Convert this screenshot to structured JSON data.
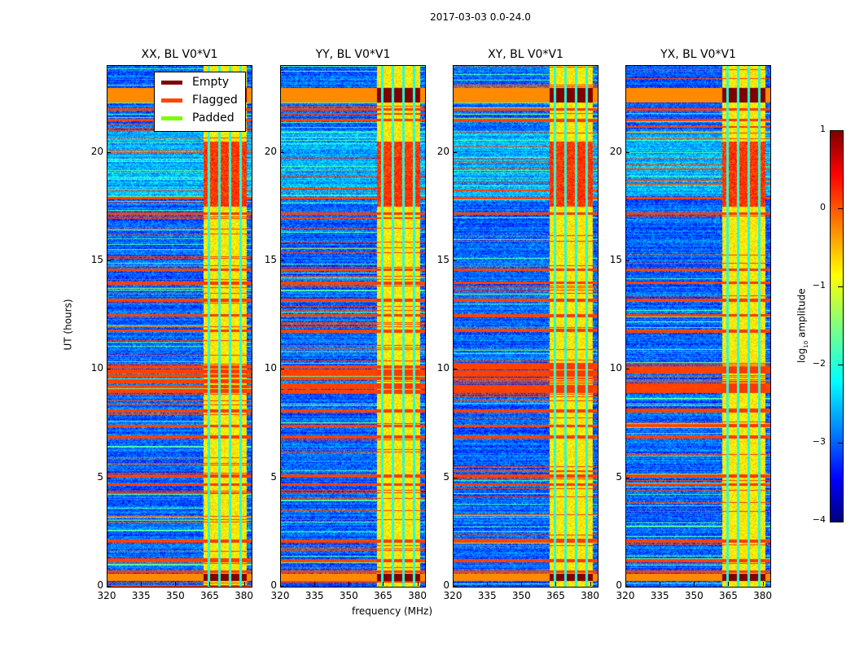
{
  "chart_data": {
    "type": "heatmap",
    "title": "2017-03-03 0.0-24.0",
    "xlabel": "frequency (MHz)",
    "ylabel": "UT (hours)",
    "xlim": [
      320,
      383
    ],
    "ylim": [
      0,
      24
    ],
    "x_ticks": [
      "320",
      "335",
      "350",
      "365",
      "380"
    ],
    "x_tick_values": [
      320,
      335,
      350,
      365,
      380
    ],
    "y_ticks": [
      "0",
      "5",
      "10",
      "15",
      "20"
    ],
    "y_tick_values": [
      0,
      5,
      10,
      15,
      20
    ],
    "panels": [
      {
        "title": "XX, BL V0*V1",
        "seed": 11
      },
      {
        "title": "YY, BL V0*V1",
        "seed": 23
      },
      {
        "title": "XY, BL V0*V1",
        "seed": 37
      },
      {
        "title": "YX, BL V0*V1",
        "seed": 41
      }
    ],
    "colormap": "jet",
    "colorbar": {
      "label": "log10 amplitude",
      "label_main": "log",
      "label_sub": "10",
      "label_rest": " amplitude",
      "range": [
        -4,
        1
      ],
      "ticks": [
        "1",
        "0",
        "−1",
        "−2",
        "−3",
        "−4"
      ],
      "tick_values": [
        1,
        0,
        -1,
        -2,
        -3,
        -4
      ]
    },
    "legend": {
      "placement": "top-right of first panel",
      "entries": [
        {
          "label": "Empty",
          "color": "#800000"
        },
        {
          "label": "Flagged",
          "color": "#ff4500"
        },
        {
          "label": "Padded",
          "color": "#7cfc00"
        }
      ]
    },
    "features": {
      "background_log_amp": -2.9,
      "rfi_band_mhz": [
        362,
        381
      ],
      "rfi_band_log_amp": -0.8,
      "band_gaps_mhz": [
        364.2,
        368.8,
        373.5,
        378.2
      ],
      "hot_interval_hours": [
        17.5,
        20.5
      ],
      "empty_intervals_hours": [
        [
          0.25,
          0.6
        ],
        [
          22.3,
          23.0
        ]
      ],
      "flagged_rows_hours": [
        0.7,
        1.2,
        2.1,
        4.7,
        5.1,
        6.9,
        7.4,
        8.1,
        9.0,
        9.2,
        9.9,
        10.1,
        11.8,
        12.5,
        13.2,
        14.0,
        14.6,
        17.2,
        17.9,
        21.5,
        22.0,
        22.8
      ]
    }
  }
}
